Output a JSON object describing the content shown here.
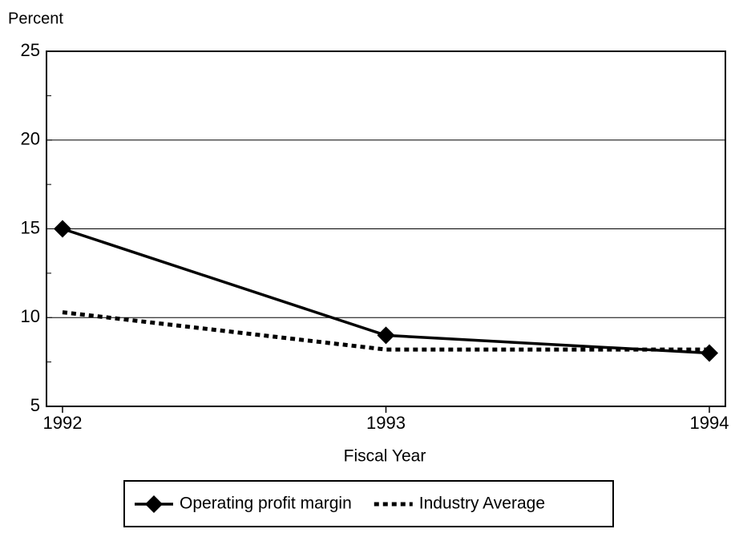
{
  "chart_data": {
    "type": "line",
    "y_axis_label": "Percent",
    "x_axis_label": "Fiscal Year",
    "categories": [
      "1992",
      "1993",
      "1994"
    ],
    "series": [
      {
        "name": "Operating profit margin",
        "color": "#000000",
        "values": [
          15,
          9,
          8
        ],
        "style": "solid",
        "marker": "diamond"
      },
      {
        "name": "Industry Average",
        "color": "#000000",
        "values": [
          10.3,
          8.2,
          8.2
        ],
        "style": "dotted"
      }
    ],
    "ylim": [
      5,
      25
    ],
    "yticks": [
      5,
      10,
      15,
      20,
      25
    ],
    "y_minor_ticks": [
      7.5,
      12.5,
      17.5,
      22.5
    ],
    "grid": true,
    "legend": "bottom"
  }
}
